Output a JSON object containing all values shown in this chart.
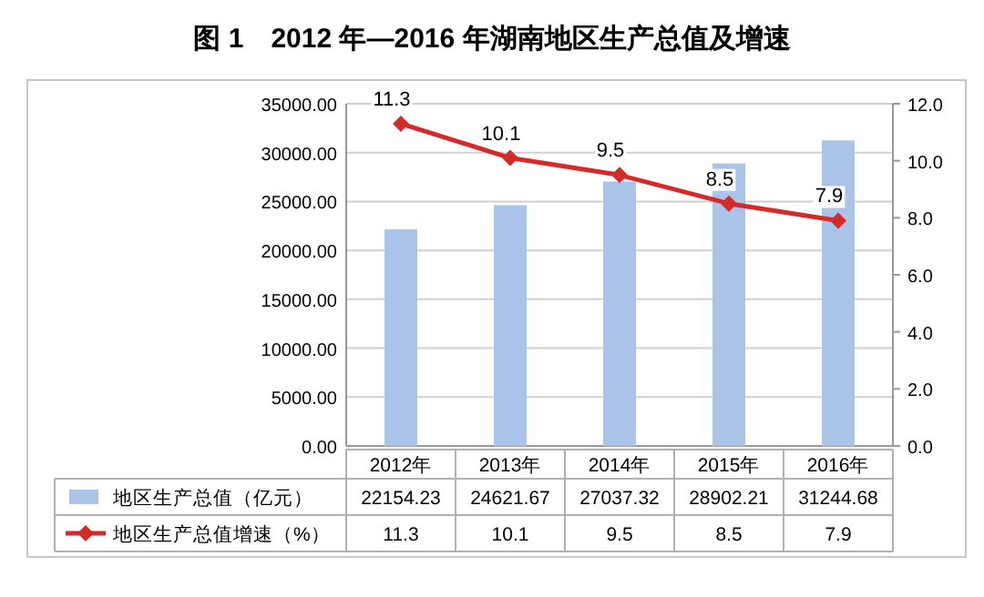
{
  "chart_data": {
    "type": "bar",
    "title": "图 1　2012 年—2016 年湖南地区生产总值及增速",
    "categories": [
      "2012年",
      "2013年",
      "2014年",
      "2015年",
      "2016年"
    ],
    "series": [
      {
        "name": "地区生产总值（亿元）",
        "color": "#a9c4e8",
        "values": [
          22154.23,
          24621.67,
          27037.32,
          28902.21,
          31244.68
        ]
      },
      {
        "name": "地区生产总值增速（%）",
        "type": "line",
        "axis": "y2",
        "color": "#d42a2a",
        "marker": "diamond",
        "values": [
          11.3,
          10.1,
          9.5,
          8.5,
          7.9
        ]
      }
    ],
    "ylim": [
      0,
      35000
    ],
    "yticks": [
      {
        "value": 0,
        "label": "0.00"
      },
      {
        "value": 5000,
        "label": "5000.00"
      },
      {
        "value": 10000,
        "label": "10000.00"
      },
      {
        "value": 15000,
        "label": "15000.00"
      },
      {
        "value": 20000,
        "label": "20000.00"
      },
      {
        "value": 25000,
        "label": "25000.00"
      },
      {
        "value": 30000,
        "label": "30000.00"
      },
      {
        "value": 35000,
        "label": "35000.00"
      }
    ],
    "y2lim": [
      0,
      12
    ],
    "y2ticks": [
      {
        "value": 0,
        "label": "0.0"
      },
      {
        "value": 2,
        "label": "2.0"
      },
      {
        "value": 4,
        "label": "4.0"
      },
      {
        "value": 6,
        "label": "6.0"
      },
      {
        "value": 8,
        "label": "8.0"
      },
      {
        "value": 10,
        "label": "10.0"
      },
      {
        "value": 12,
        "label": "12.0"
      }
    ],
    "annotations": [
      "11.3",
      "10.1",
      "9.5",
      "8.5",
      "7.9"
    ],
    "grid": "y",
    "legend": "bottom",
    "data_labels": true
  }
}
